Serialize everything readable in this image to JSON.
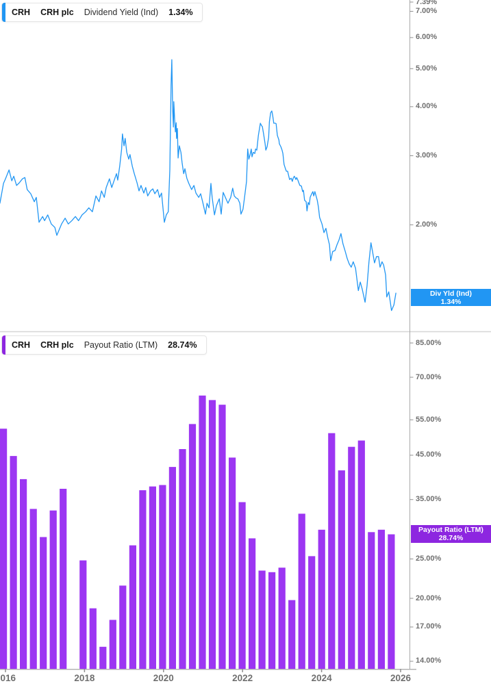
{
  "panels": {
    "dividend_yield": {
      "legend": {
        "ticker": "CRH",
        "company": "CRH plc",
        "metric": "Dividend Yield (Ind)",
        "value": "1.34%"
      },
      "badge": {
        "line1": "Div Yld (Ind)",
        "line2": "1.34%",
        "color": "#2196f3"
      },
      "y_ticks": [
        {
          "label": "7.39%",
          "value": 7.39
        },
        {
          "label": "7.00%",
          "value": 7.0
        },
        {
          "label": "6.00%",
          "value": 6.0
        },
        {
          "label": "5.00%",
          "value": 5.0
        },
        {
          "label": "4.00%",
          "value": 4.0
        },
        {
          "label": "3.00%",
          "value": 3.0
        },
        {
          "label": "2.00%",
          "value": 2.0
        }
      ]
    },
    "payout_ratio": {
      "legend": {
        "ticker": "CRH",
        "company": "CRH plc",
        "metric": "Payout Ratio (LTM)",
        "value": "28.74%"
      },
      "badge": {
        "line1": "Payout Ratio (LTM)",
        "line2": "28.74%",
        "color": "#8d26e0"
      },
      "y_ticks": [
        {
          "label": "85.00%",
          "value": 85
        },
        {
          "label": "70.00%",
          "value": 70
        },
        {
          "label": "55.00%",
          "value": 55
        },
        {
          "label": "45.00%",
          "value": 45
        },
        {
          "label": "35.00%",
          "value": 35
        },
        {
          "label": "25.00%",
          "value": 25
        },
        {
          "label": "20.00%",
          "value": 20
        },
        {
          "label": "17.00%",
          "value": 17
        },
        {
          "label": "14.00%",
          "value": 14
        }
      ]
    }
  },
  "x_axis": {
    "labels": [
      {
        "label": "2016",
        "year": 2016
      },
      {
        "label": "2018",
        "year": 2018
      },
      {
        "label": "2020",
        "year": 2020
      },
      {
        "label": "2022",
        "year": 2022
      },
      {
        "label": "2024",
        "year": 2024
      },
      {
        "label": "2026",
        "year": 2026
      }
    ]
  },
  "chart_data": [
    {
      "type": "line",
      "title": "CRH plc Dividend Yield (Ind)",
      "units": "%",
      "color": "#2196f3",
      "y_scale": "log",
      "ylim": [
        1.1,
        7.39
      ],
      "x_range_years": [
        2015.86,
        2025.88
      ],
      "last_value": 1.34,
      "points": [
        [
          2015.86,
          2.27
        ],
        [
          2015.95,
          2.55
        ],
        [
          2016.0,
          2.62
        ],
        [
          2016.09,
          2.76
        ],
        [
          2016.16,
          2.59
        ],
        [
          2016.21,
          2.66
        ],
        [
          2016.28,
          2.52
        ],
        [
          2016.35,
          2.56
        ],
        [
          2016.43,
          2.62
        ],
        [
          2016.49,
          2.64
        ],
        [
          2016.55,
          2.46
        ],
        [
          2016.64,
          2.4
        ],
        [
          2016.73,
          2.29
        ],
        [
          2016.78,
          2.35
        ],
        [
          2016.85,
          2.03
        ],
        [
          2016.94,
          2.1
        ],
        [
          2016.99,
          2.05
        ],
        [
          2017.07,
          2.12
        ],
        [
          2017.16,
          2.01
        ],
        [
          2017.25,
          1.97
        ],
        [
          2017.3,
          1.88
        ],
        [
          2017.42,
          2.01
        ],
        [
          2017.51,
          2.08
        ],
        [
          2017.59,
          2.01
        ],
        [
          2017.68,
          2.05
        ],
        [
          2017.77,
          2.1
        ],
        [
          2017.85,
          2.05
        ],
        [
          2017.94,
          2.12
        ],
        [
          2018.03,
          2.16
        ],
        [
          2018.11,
          2.21
        ],
        [
          2018.2,
          2.16
        ],
        [
          2018.29,
          2.37
        ],
        [
          2018.37,
          2.29
        ],
        [
          2018.43,
          2.44
        ],
        [
          2018.5,
          2.35
        ],
        [
          2018.55,
          2.49
        ],
        [
          2018.63,
          2.62
        ],
        [
          2018.69,
          2.49
        ],
        [
          2018.77,
          2.63
        ],
        [
          2018.81,
          2.7
        ],
        [
          2018.84,
          2.6
        ],
        [
          2018.89,
          2.82
        ],
        [
          2018.94,
          3.12
        ],
        [
          2018.96,
          3.41
        ],
        [
          2019.0,
          3.18
        ],
        [
          2019.03,
          3.32
        ],
        [
          2019.07,
          3.06
        ],
        [
          2019.12,
          2.94
        ],
        [
          2019.15,
          3.02
        ],
        [
          2019.21,
          2.82
        ],
        [
          2019.26,
          2.7
        ],
        [
          2019.33,
          2.56
        ],
        [
          2019.38,
          2.44
        ],
        [
          2019.43,
          2.52
        ],
        [
          2019.5,
          2.41
        ],
        [
          2019.55,
          2.49
        ],
        [
          2019.6,
          2.37
        ],
        [
          2019.67,
          2.44
        ],
        [
          2019.73,
          2.47
        ],
        [
          2019.78,
          2.4
        ],
        [
          2019.85,
          2.46
        ],
        [
          2019.9,
          2.35
        ],
        [
          2019.95,
          2.41
        ],
        [
          2020.02,
          2.03
        ],
        [
          2020.07,
          2.12
        ],
        [
          2020.12,
          2.16
        ],
        [
          2020.16,
          2.76
        ],
        [
          2020.19,
          4.54
        ],
        [
          2020.21,
          5.27
        ],
        [
          2020.23,
          3.96
        ],
        [
          2020.25,
          3.55
        ],
        [
          2020.26,
          4.12
        ],
        [
          2020.28,
          3.72
        ],
        [
          2020.3,
          3.45
        ],
        [
          2020.32,
          3.64
        ],
        [
          2020.33,
          3.32
        ],
        [
          2020.35,
          3.52
        ],
        [
          2020.37,
          2.96
        ],
        [
          2020.4,
          3.18
        ],
        [
          2020.44,
          3.06
        ],
        [
          2020.47,
          2.88
        ],
        [
          2020.51,
          2.7
        ],
        [
          2020.54,
          2.78
        ],
        [
          2020.59,
          2.63
        ],
        [
          2020.64,
          2.55
        ],
        [
          2020.71,
          2.46
        ],
        [
          2020.77,
          2.52
        ],
        [
          2020.82,
          2.41
        ],
        [
          2020.89,
          2.35
        ],
        [
          2020.94,
          2.4
        ],
        [
          2020.99,
          2.29
        ],
        [
          2021.06,
          2.13
        ],
        [
          2021.1,
          2.27
        ],
        [
          2021.15,
          2.21
        ],
        [
          2021.2,
          2.55
        ],
        [
          2021.23,
          2.35
        ],
        [
          2021.29,
          2.12
        ],
        [
          2021.34,
          2.24
        ],
        [
          2021.41,
          2.33
        ],
        [
          2021.46,
          2.13
        ],
        [
          2021.51,
          2.42
        ],
        [
          2021.58,
          2.33
        ],
        [
          2021.63,
          2.27
        ],
        [
          2021.7,
          2.35
        ],
        [
          2021.75,
          2.48
        ],
        [
          2021.79,
          2.37
        ],
        [
          2021.84,
          2.34
        ],
        [
          2021.88,
          2.33
        ],
        [
          2021.93,
          2.27
        ],
        [
          2021.96,
          2.13
        ],
        [
          2022.01,
          2.19
        ],
        [
          2022.05,
          2.35
        ],
        [
          2022.1,
          2.58
        ],
        [
          2022.13,
          3.12
        ],
        [
          2022.16,
          2.94
        ],
        [
          2022.19,
          3.02
        ],
        [
          2022.22,
          3.12
        ],
        [
          2022.24,
          2.98
        ],
        [
          2022.27,
          3.06
        ],
        [
          2022.31,
          3.04
        ],
        [
          2022.33,
          3.12
        ],
        [
          2022.36,
          3.1
        ],
        [
          2022.4,
          3.38
        ],
        [
          2022.45,
          3.63
        ],
        [
          2022.48,
          3.58
        ],
        [
          2022.5,
          3.56
        ],
        [
          2022.53,
          3.42
        ],
        [
          2022.57,
          3.22
        ],
        [
          2022.59,
          3.1
        ],
        [
          2022.62,
          3.16
        ],
        [
          2022.66,
          3.34
        ],
        [
          2022.68,
          3.66
        ],
        [
          2022.71,
          3.86
        ],
        [
          2022.74,
          3.9
        ],
        [
          2022.76,
          3.81
        ],
        [
          2022.79,
          3.63
        ],
        [
          2022.83,
          3.63
        ],
        [
          2022.85,
          3.62
        ],
        [
          2022.88,
          3.38
        ],
        [
          2022.92,
          3.29
        ],
        [
          2022.93,
          3.22
        ],
        [
          2022.97,
          3.16
        ],
        [
          2023.0,
          3.1
        ],
        [
          2023.02,
          3.04
        ],
        [
          2023.05,
          2.85
        ],
        [
          2023.09,
          2.77
        ],
        [
          2023.11,
          2.74
        ],
        [
          2023.14,
          2.74
        ],
        [
          2023.17,
          2.66
        ],
        [
          2023.19,
          2.61
        ],
        [
          2023.23,
          2.63
        ],
        [
          2023.26,
          2.58
        ],
        [
          2023.28,
          2.63
        ],
        [
          2023.31,
          2.66
        ],
        [
          2023.35,
          2.61
        ],
        [
          2023.37,
          2.64
        ],
        [
          2023.4,
          2.6
        ],
        [
          2023.43,
          2.55
        ],
        [
          2023.45,
          2.52
        ],
        [
          2023.49,
          2.51
        ],
        [
          2023.52,
          2.43
        ],
        [
          2023.54,
          2.45
        ],
        [
          2023.57,
          2.31
        ],
        [
          2023.61,
          2.29
        ],
        [
          2023.63,
          2.17
        ],
        [
          2023.66,
          2.28
        ],
        [
          2023.69,
          2.25
        ],
        [
          2023.71,
          2.35
        ],
        [
          2023.75,
          2.4
        ],
        [
          2023.78,
          2.43
        ],
        [
          2023.8,
          2.37
        ],
        [
          2023.83,
          2.43
        ],
        [
          2023.89,
          2.31
        ],
        [
          2023.92,
          2.22
        ],
        [
          2023.95,
          2.09
        ],
        [
          2024.01,
          2.01
        ],
        [
          2024.06,
          1.91
        ],
        [
          2024.11,
          1.96
        ],
        [
          2024.16,
          1.85
        ],
        [
          2024.2,
          1.78
        ],
        [
          2024.23,
          1.62
        ],
        [
          2024.28,
          1.71
        ],
        [
          2024.34,
          1.72
        ],
        [
          2024.39,
          1.78
        ],
        [
          2024.44,
          1.83
        ],
        [
          2024.49,
          1.9
        ],
        [
          2024.54,
          1.79
        ],
        [
          2024.6,
          1.71
        ],
        [
          2024.65,
          1.64
        ],
        [
          2024.7,
          1.59
        ],
        [
          2024.75,
          1.56
        ],
        [
          2024.8,
          1.61
        ],
        [
          2024.86,
          1.55
        ],
        [
          2024.93,
          1.36
        ],
        [
          2024.98,
          1.43
        ],
        [
          2025.03,
          1.37
        ],
        [
          2025.1,
          1.27
        ],
        [
          2025.15,
          1.4
        ],
        [
          2025.2,
          1.61
        ],
        [
          2025.25,
          1.8
        ],
        [
          2025.29,
          1.71
        ],
        [
          2025.34,
          1.6
        ],
        [
          2025.39,
          1.66
        ],
        [
          2025.44,
          1.66
        ],
        [
          2025.48,
          1.56
        ],
        [
          2025.53,
          1.61
        ],
        [
          2025.57,
          1.58
        ],
        [
          2025.62,
          1.49
        ],
        [
          2025.65,
          1.31
        ],
        [
          2025.7,
          1.35
        ],
        [
          2025.74,
          1.27
        ],
        [
          2025.77,
          1.21
        ],
        [
          2025.83,
          1.25
        ],
        [
          2025.88,
          1.34
        ]
      ]
    },
    {
      "type": "bar",
      "title": "CRH plc Payout Ratio (LTM)",
      "units": "%",
      "color": "#9c36f2",
      "y_scale": "log",
      "ylim": [
        13,
        90
      ],
      "last_value": 28.74,
      "categories": [
        "2015 Q4",
        "2016 Q1",
        "2016 Q2",
        "2016 Q3",
        "2016 Q4",
        "2017 Q1",
        "2017 Q2",
        "2017 Q3",
        "2017 Q4",
        "2018 Q1",
        "2018 Q2",
        "2018 Q3",
        "2018 Q4",
        "2019 Q1",
        "2019 Q2",
        "2019 Q3",
        "2019 Q4",
        "2020 Q1",
        "2020 Q2",
        "2020 Q3",
        "2020 Q4",
        "2021 Q1",
        "2021 Q2",
        "2021 Q3",
        "2021 Q4",
        "2022 Q1",
        "2022 Q2",
        "2022 Q3",
        "2022 Q4",
        "2023 Q1",
        "2023 Q2",
        "2023 Q3",
        "2023 Q4",
        "2024 Q1",
        "2024 Q2",
        "2024 Q3",
        "2024 Q4",
        "2025 Q1",
        "2025 Q2",
        "2025 Q3"
      ],
      "values": [
        52.3,
        44.8,
        39.3,
        33.2,
        28.3,
        32.9,
        37.2,
        null,
        24.8,
        18.9,
        15.2,
        17.7,
        21.5,
        27.0,
        36.9,
        37.7,
        38.0,
        42.1,
        46.6,
        53.7,
        63.1,
        61.5,
        59.9,
        44.4,
        34.5,
        28.1,
        23.4,
        23.2,
        23.8,
        19.8,
        32.3,
        25.4,
        29.5,
        51.0,
        41.3,
        47.2,
        48.9,
        29.1,
        29.5,
        28.74
      ]
    }
  ]
}
